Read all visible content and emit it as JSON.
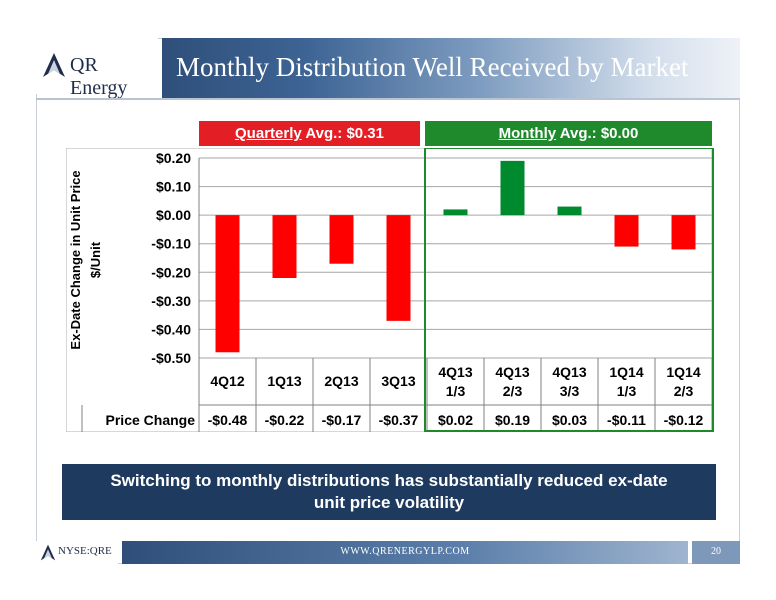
{
  "header": {
    "logo_text": "QR Energy",
    "title": "Monthly Distribution Well Received by Market"
  },
  "legend": {
    "quarterly_word": "Quarterly",
    "quarterly_rest": " Avg.:  $0.31",
    "monthly_word": "Monthly",
    "monthly_rest": " Avg.: $0.00"
  },
  "colors": {
    "negative": "#ff0000",
    "positive": "#008a2e",
    "quarterly_header": "#e31e24",
    "monthly_header": "#1f8a2c",
    "banner": "#1f3a5f"
  },
  "chart_data": {
    "type": "bar",
    "ylabel_line1": "Ex-Date Change in Unit Price",
    "ylabel_line2": "$/Unit",
    "ylim": [
      -0.5,
      0.2
    ],
    "yticks": [
      0.2,
      0.1,
      0.0,
      -0.1,
      -0.2,
      -0.3,
      -0.4,
      -0.5
    ],
    "ytick_labels": [
      "$0.20",
      "$0.10",
      "$0.00",
      "-$0.10",
      "-$0.20",
      "-$0.30",
      "-$0.40",
      "-$0.50"
    ],
    "grid": true,
    "categories": [
      [
        "4Q12"
      ],
      [
        "1Q13"
      ],
      [
        "2Q13"
      ],
      [
        "3Q13"
      ],
      [
        "4Q13",
        "1/3"
      ],
      [
        "4Q13",
        "2/3"
      ],
      [
        "4Q13",
        "3/3"
      ],
      [
        "1Q14",
        "1/3"
      ],
      [
        "1Q14",
        "2/3"
      ]
    ],
    "values": [
      -0.48,
      -0.22,
      -0.17,
      -0.37,
      0.02,
      0.19,
      0.03,
      -0.11,
      -0.12
    ],
    "table_row_label": "Price Change",
    "table_values": [
      "-$0.48",
      "-$0.22",
      "-$0.17",
      "-$0.37",
      "$0.02",
      "$0.19",
      "$0.03",
      "-$0.11",
      "-$0.12"
    ],
    "groups": [
      {
        "name": "Quarterly",
        "start": 0,
        "end": 3
      },
      {
        "name": "Monthly",
        "start": 4,
        "end": 8
      }
    ]
  },
  "banner": {
    "line1": "Switching to monthly distributions has substantially reduced ex-date",
    "line2": "unit price volatility"
  },
  "footer": {
    "ticker": "NYSE:QRE",
    "url": "WWW.QRENERGYLP.COM",
    "page_number": "20"
  }
}
